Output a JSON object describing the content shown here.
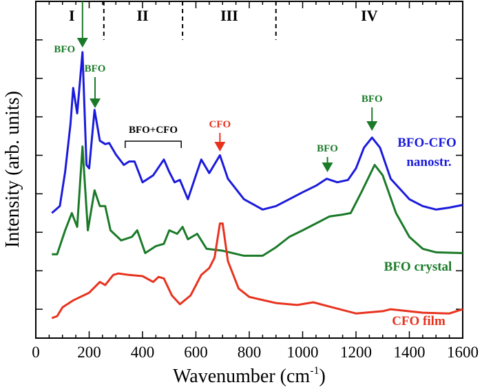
{
  "chart_data": {
    "type": "line",
    "xlabel": "Wavenumber (cm",
    "xlabel_sup": "-1",
    "xlabel_close": ")",
    "ylabel": "Intensity (arb. units)",
    "xlim": [
      0,
      1600
    ],
    "ylim": [
      -0.75,
      8
    ],
    "xticks": [
      "0",
      "200",
      "400",
      "600",
      "800",
      "1000",
      "1200",
      "1400",
      "1600"
    ],
    "yticks_unlabeled": [
      0,
      1,
      2,
      3,
      4,
      5,
      6,
      7
    ],
    "grid": false,
    "series": [
      {
        "name": "BFO-CFO nanostr.",
        "color": "#1a1adc",
        "x": [
          60,
          90,
          110,
          130,
          140,
          155,
          175,
          190,
          200,
          220,
          240,
          260,
          275,
          300,
          330,
          350,
          370,
          400,
          440,
          480,
          500,
          520,
          540,
          570,
          600,
          620,
          650,
          690,
          720,
          780,
          850,
          900,
          950,
          1000,
          1050,
          1090,
          1130,
          1170,
          1200,
          1230,
          1260,
          1290,
          1330,
          1400,
          1450,
          1500,
          1550,
          1600
        ],
        "y": [
          2.5,
          2.68,
          3.57,
          4.82,
          5.75,
          5.09,
          6.68,
          3.75,
          3.66,
          5.18,
          4.38,
          4.29,
          4.32,
          4.02,
          3.75,
          3.84,
          3.84,
          3.3,
          3.48,
          3.89,
          3.57,
          3.3,
          3.36,
          2.86,
          3.48,
          3.89,
          3.54,
          4.0,
          3.39,
          2.86,
          2.59,
          2.68,
          2.86,
          3.04,
          3.21,
          3.39,
          3.3,
          3.36,
          3.66,
          4.2,
          4.46,
          4.2,
          3.39,
          2.86,
          2.68,
          2.59,
          2.64,
          2.71
        ]
      },
      {
        "name": "BFO crystal",
        "color": "#1a7a28",
        "x": [
          60,
          80,
          110,
          135,
          155,
          175,
          195,
          220,
          240,
          260,
          280,
          320,
          360,
          380,
          410,
          450,
          480,
          500,
          530,
          550,
          570,
          605,
          640,
          700,
          780,
          850,
          900,
          950,
          1000,
          1050,
          1100,
          1150,
          1180,
          1220,
          1270,
          1300,
          1350,
          1400,
          1450,
          1500,
          1600
        ],
        "y": [
          1.43,
          1.43,
          2.05,
          2.5,
          2.14,
          4.23,
          2.05,
          3.09,
          2.68,
          2.68,
          2.05,
          1.79,
          1.88,
          2.05,
          1.46,
          1.64,
          1.7,
          2.05,
          1.96,
          2.14,
          1.82,
          1.96,
          1.57,
          1.52,
          1.39,
          1.39,
          1.61,
          1.88,
          2.05,
          2.23,
          2.41,
          2.46,
          2.5,
          3.04,
          3.75,
          3.48,
          2.5,
          1.88,
          1.57,
          1.48,
          1.46
        ]
      },
      {
        "name": "CFO film",
        "color": "#e8321e",
        "x": [
          60,
          80,
          100,
          140,
          200,
          240,
          260,
          290,
          310,
          350,
          400,
          440,
          460,
          480,
          510,
          540,
          580,
          620,
          650,
          670,
          690,
          700,
          720,
          760,
          800,
          900,
          980,
          1040,
          1100,
          1200,
          1300,
          1330,
          1450,
          1550,
          1600
        ],
        "y": [
          -0.23,
          -0.18,
          0.05,
          0.23,
          0.43,
          0.71,
          0.63,
          0.89,
          0.93,
          0.89,
          0.86,
          0.71,
          0.84,
          0.8,
          0.36,
          0.13,
          0.36,
          0.89,
          1.07,
          1.34,
          2.23,
          2.23,
          1.25,
          0.54,
          0.32,
          0.16,
          0.11,
          0.18,
          0.07,
          -0.11,
          -0.05,
          0,
          -0.09,
          -0.11,
          0
        ]
      }
    ],
    "regions": {
      "boundaries": [
        255,
        550,
        900
      ],
      "labels": [
        {
          "text": "I",
          "x": 135
        },
        {
          "text": "II",
          "x": 400
        },
        {
          "text": "III",
          "x": 725
        },
        {
          "text": "IV",
          "x": 1250
        }
      ]
    },
    "annotations": [
      {
        "text": "BFO",
        "color": "#1a7a28",
        "arrow_x": 175,
        "kind": "side-left"
      },
      {
        "text": "BFO",
        "color": "#1a7a28",
        "arrow_x": 222,
        "kind": "above"
      },
      {
        "text": "CFO",
        "color": "#e8321e",
        "arrow_x": 690,
        "kind": "above"
      },
      {
        "text": "BFO",
        "color": "#1a7a28",
        "arrow_x": 1093,
        "kind": "above"
      },
      {
        "text": "BFO",
        "color": "#1a7a28",
        "arrow_x": 1260,
        "kind": "above"
      }
    ],
    "bracket": {
      "text": "BFO+CFO",
      "from": 335,
      "to": 545
    },
    "series_labels": [
      {
        "lines": [
          "BFO-CFO",
          "nanostr."
        ],
        "color": "#1a1adc"
      },
      {
        "lines": [
          "BFO crystal"
        ],
        "color": "#1a7a28"
      },
      {
        "lines": [
          "CFO film"
        ],
        "color": "#e8321e"
      }
    ]
  }
}
